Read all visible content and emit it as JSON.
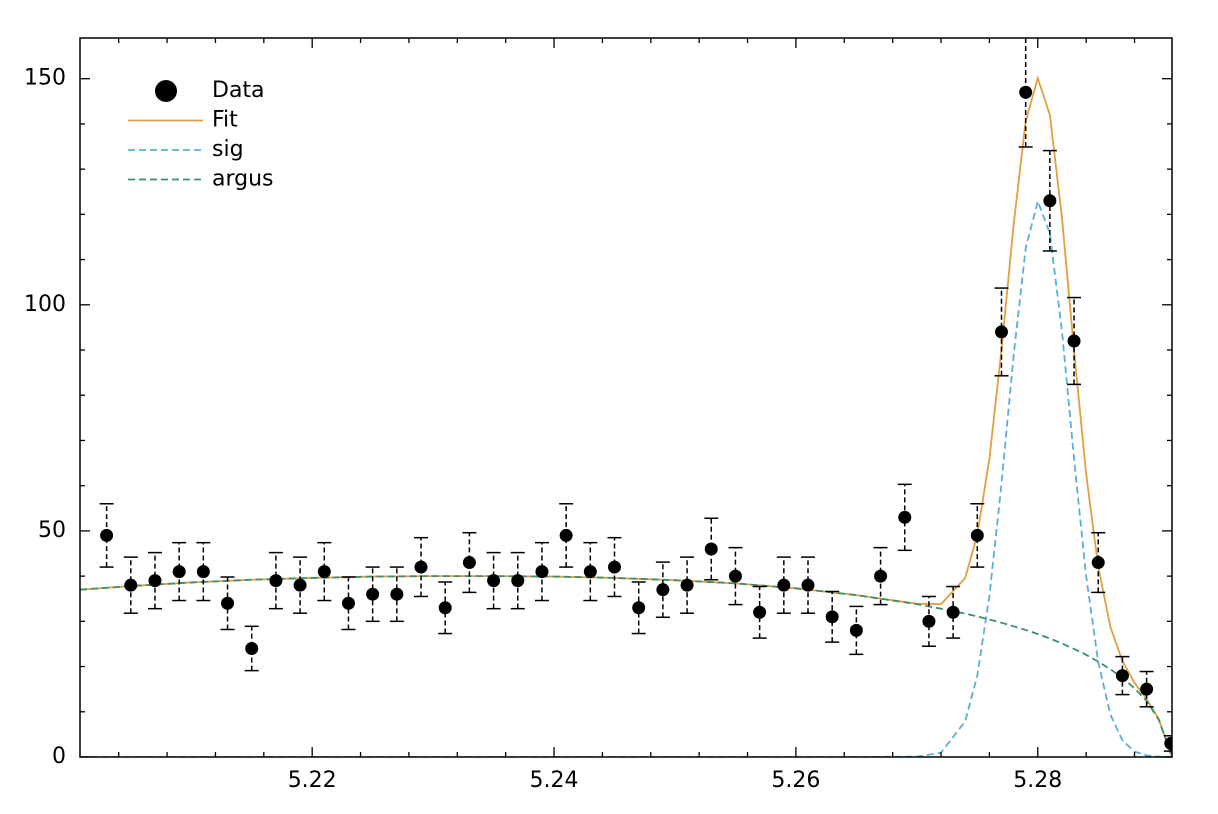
{
  "chart_data": {
    "type": "scatter",
    "xlim": [
      5.2008,
      5.2911
    ],
    "ylim": [
      0,
      159
    ],
    "xticks": [
      5.22,
      5.24,
      5.26,
      5.28
    ],
    "xminorticks": [
      5.204,
      5.208,
      5.212,
      5.216,
      5.224,
      5.228,
      5.232,
      5.236,
      5.244,
      5.248,
      5.252,
      5.256,
      5.264,
      5.268,
      5.272,
      5.276,
      5.284,
      5.288
    ],
    "yticks": [
      0,
      50,
      100,
      150
    ],
    "yminorticks": [
      10,
      20,
      30,
      40,
      60,
      70,
      80,
      90,
      110,
      120,
      130,
      140
    ],
    "legend": "upper left",
    "series": [
      {
        "name": "Data",
        "color": "#000000",
        "kind": "errorbar",
        "x": [
          5.203,
          5.205,
          5.207,
          5.209,
          5.211,
          5.213,
          5.215,
          5.217,
          5.219,
          5.221,
          5.223,
          5.225,
          5.227,
          5.229,
          5.231,
          5.233,
          5.235,
          5.237,
          5.239,
          5.241,
          5.243,
          5.245,
          5.247,
          5.249,
          5.251,
          5.253,
          5.255,
          5.257,
          5.259,
          5.261,
          5.263,
          5.265,
          5.267,
          5.269,
          5.271,
          5.273,
          5.275,
          5.277,
          5.279,
          5.281,
          5.283,
          5.285,
          5.287,
          5.289,
          5.291
        ],
        "values": [
          49,
          38,
          39,
          41,
          41,
          34,
          24,
          39,
          38,
          41,
          34,
          36,
          36,
          42,
          33,
          43,
          39,
          39,
          41,
          49,
          41,
          42,
          33,
          37,
          38,
          46,
          40,
          32,
          38,
          38,
          31,
          28,
          40,
          53,
          30,
          32,
          49,
          94,
          147,
          123,
          92,
          43,
          18,
          15,
          3
        ],
        "errors": [
          7,
          6.2,
          6.2,
          6.4,
          6.4,
          5.8,
          4.9,
          6.2,
          6.2,
          6.4,
          5.8,
          6,
          6,
          6.5,
          5.7,
          6.6,
          6.2,
          6.2,
          6.4,
          7,
          6.4,
          6.5,
          5.7,
          6.1,
          6.2,
          6.8,
          6.3,
          5.7,
          6.2,
          6.2,
          5.6,
          5.3,
          6.3,
          7.3,
          5.5,
          5.7,
          7,
          9.7,
          12.1,
          11.1,
          9.6,
          6.6,
          4.2,
          3.9,
          1.7
        ]
      },
      {
        "name": "Fit",
        "color": "#e0a040",
        "kind": "line",
        "dash": false,
        "x": [
          5.2008,
          5.205,
          5.21,
          5.215,
          5.22,
          5.225,
          5.23,
          5.235,
          5.24,
          5.245,
          5.25,
          5.255,
          5.26,
          5.265,
          5.27,
          5.272,
          5.274,
          5.275,
          5.276,
          5.277,
          5.278,
          5.279,
          5.28,
          5.281,
          5.282,
          5.283,
          5.284,
          5.285,
          5.286,
          5.287,
          5.288,
          5.289,
          5.29,
          5.2911
        ],
        "values": [
          37,
          37.8,
          38.6,
          39.2,
          39.6,
          39.9,
          40,
          40,
          39.9,
          39.6,
          39.1,
          38.4,
          37.3,
          35.8,
          33.9,
          33.8,
          39.6,
          49.1,
          66,
          90.1,
          117.6,
          140.6,
          150.1,
          142,
          119.3,
          89.9,
          62.6,
          42.1,
          28.8,
          21.2,
          16.4,
          12.8,
          8.4,
          0.02
        ]
      },
      {
        "name": "sig",
        "color": "#5aafd8",
        "kind": "line",
        "dash": true,
        "x": [
          5.2008,
          5.205,
          5.21,
          5.215,
          5.22,
          5.225,
          5.23,
          5.235,
          5.24,
          5.245,
          5.25,
          5.255,
          5.26,
          5.265,
          5.27,
          5.272,
          5.274,
          5.275,
          5.276,
          5.277,
          5.278,
          5.279,
          5.28,
          5.281,
          5.282,
          5.283,
          5.284,
          5.285,
          5.286,
          5.287,
          5.288,
          5.289,
          5.29,
          5.2911
        ],
        "values": [
          0,
          0,
          0,
          0,
          0,
          0,
          0,
          0,
          0,
          0,
          0,
          0,
          0,
          0,
          0.07,
          0.96,
          7.9,
          18,
          35.6,
          60.4,
          88.7,
          112.5,
          122.9,
          115.8,
          94.2,
          66,
          40,
          21,
          9.4,
          3.7,
          1.2,
          0.35,
          0.08,
          0.02
        ]
      },
      {
        "name": "argus",
        "color": "#3a9070",
        "kind": "line",
        "dash": true,
        "x": [
          5.2008,
          5.205,
          5.21,
          5.215,
          5.22,
          5.225,
          5.23,
          5.235,
          5.24,
          5.245,
          5.25,
          5.255,
          5.26,
          5.265,
          5.27,
          5.272,
          5.274,
          5.275,
          5.276,
          5.277,
          5.278,
          5.279,
          5.28,
          5.281,
          5.282,
          5.283,
          5.284,
          5.285,
          5.286,
          5.287,
          5.288,
          5.289,
          5.29,
          5.2911
        ],
        "values": [
          37,
          37.8,
          38.6,
          39.2,
          39.6,
          39.9,
          40,
          40,
          39.9,
          39.6,
          39.1,
          38.4,
          37.3,
          35.8,
          33.8,
          32.8,
          31.7,
          31.1,
          30.4,
          29.7,
          28.9,
          28.1,
          27.2,
          26.2,
          25.1,
          23.9,
          22.6,
          21.1,
          19.4,
          17.5,
          15.2,
          12.4,
          8.3,
          0
        ]
      }
    ]
  }
}
